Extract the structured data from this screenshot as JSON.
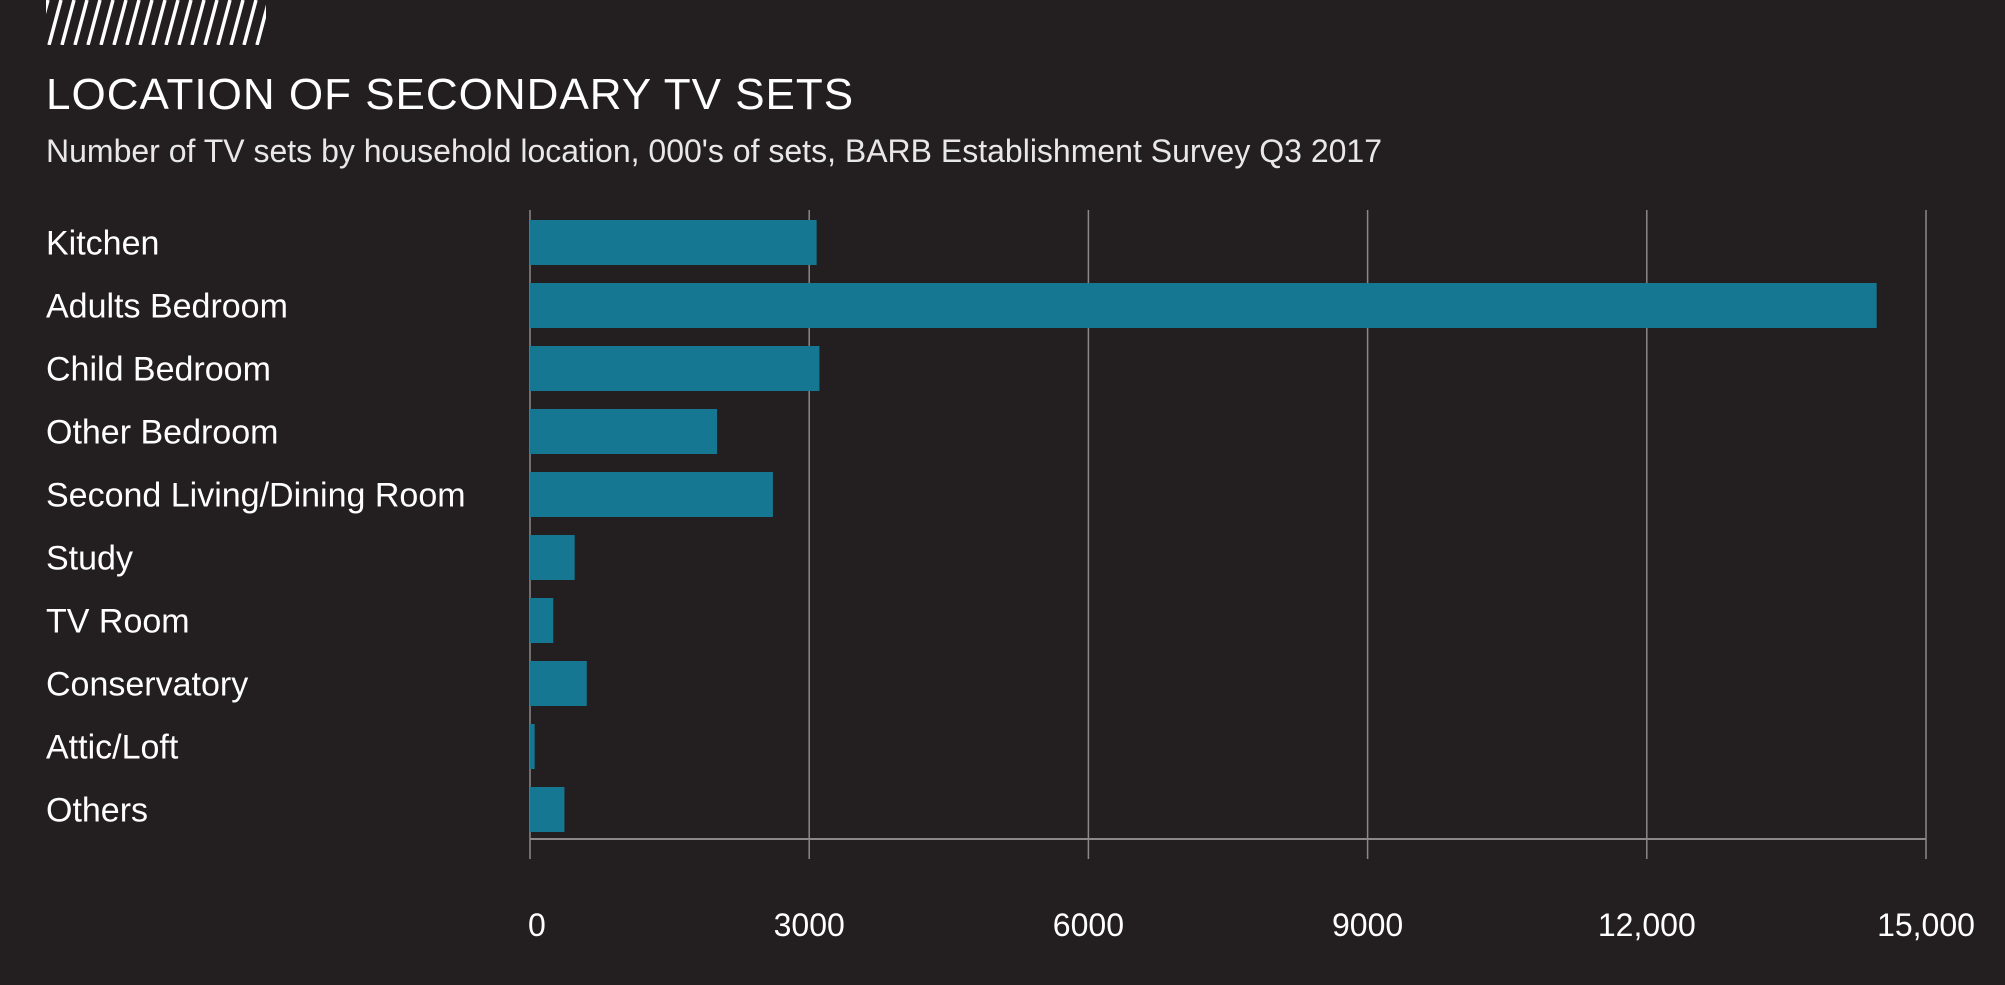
{
  "logo_icon": "hatched-stripes-logo",
  "chart_data": {
    "type": "bar",
    "orientation": "horizontal",
    "title": "LOCATION OF SECONDARY TV SETS",
    "subtitle": "Number of TV sets by household location, 000's of sets, BARB Establishment Survey Q3 2017",
    "xlabel": "",
    "ylabel": "",
    "categories": [
      "Kitchen",
      "Adults Bedroom",
      "Child Bedroom",
      "Other Bedroom",
      "Second Living/Dining Room",
      "Study",
      "TV Room",
      "Conservatory",
      "Attic/Loft",
      "Others"
    ],
    "values": [
      3080,
      14470,
      3110,
      2010,
      2610,
      480,
      250,
      610,
      50,
      370
    ],
    "xlim": [
      0,
      15000
    ],
    "ticks": [
      0,
      3000,
      6000,
      9000,
      12000,
      15000
    ],
    "tick_labels": [
      "0",
      "3000",
      "6000",
      "9000",
      "12,000",
      "15,000"
    ],
    "grid": true,
    "legend": "none",
    "bar_color": "#157791",
    "background": "#231f20"
  }
}
